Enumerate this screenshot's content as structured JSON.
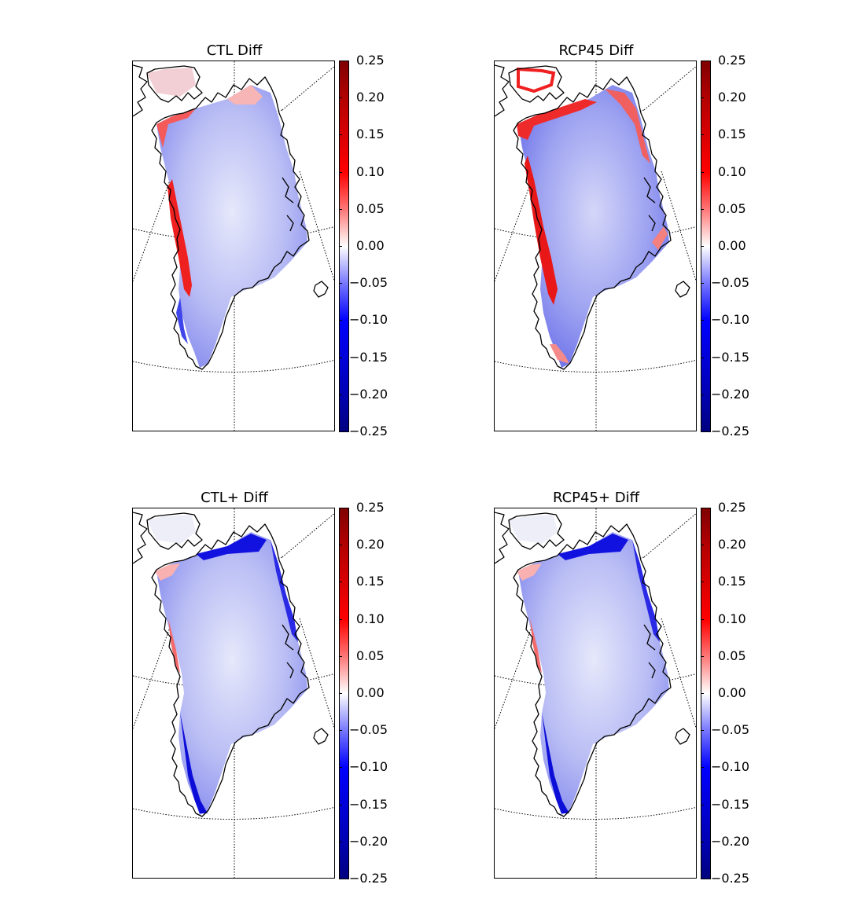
{
  "panels": [
    {
      "title": "CTL Diff"
    },
    {
      "title": "RCP45 Diff"
    },
    {
      "title": "CTL+ Diff"
    },
    {
      "title": "RCP45+ Diff"
    }
  ],
  "colorbar": {
    "ticks": [
      "0.25",
      "0.20",
      "0.15",
      "0.10",
      "0.05",
      "0.00",
      "−0.05",
      "−0.10",
      "−0.15",
      "−0.20",
      "−0.25"
    ],
    "colormap": "seismic",
    "colors": {
      "max": "#800000",
      "positive": "#ff0000",
      "zero": "#ffffff",
      "negative": "#0000ff",
      "min": "#000080"
    }
  }
}
